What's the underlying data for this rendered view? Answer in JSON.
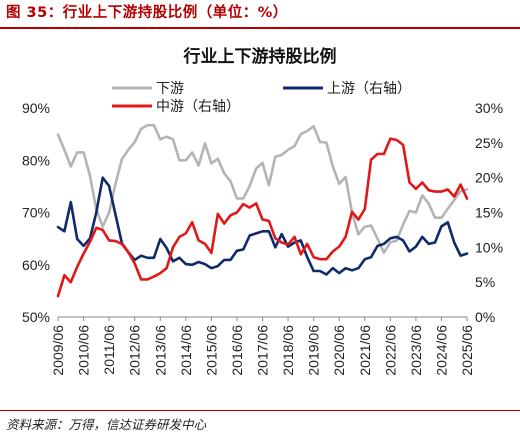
{
  "header": {
    "figure_title": "图 35：行业上下游持股比例（单位：%）"
  },
  "footer": {
    "source": "资料来源：万得，信达证券研发中心"
  },
  "colors": {
    "accent": "#b40000",
    "downstream": "#b4b4b4",
    "midstream": "#e01818",
    "upstream": "#0e2a6b"
  },
  "chart_data": {
    "type": "line",
    "title": "行业上下游持股比例",
    "x_categories": [
      "2009/06",
      "2010/06",
      "2011/06",
      "2012/06",
      "2013/06",
      "2014/06",
      "2015/06",
      "2016/06",
      "2017/06",
      "2018/06",
      "2019/06",
      "2020/06",
      "2021/06",
      "2022/06",
      "2023/06",
      "2024/06",
      "2025/06"
    ],
    "y_left": {
      "range": [
        50,
        90
      ],
      "ticks": [
        "50%",
        "60%",
        "70%",
        "80%",
        "90%"
      ]
    },
    "y_right": {
      "range": [
        0,
        30
      ],
      "ticks": [
        "0%",
        "5%",
        "10%",
        "15%",
        "20%",
        "25%",
        "30%"
      ]
    },
    "legend": [
      {
        "name": "下游",
        "color": "#b4b4b4"
      },
      {
        "name": "上游（右轴）",
        "color": "#0e2a6b"
      },
      {
        "name": "中游（右轴）",
        "color": "#e01818"
      }
    ],
    "legend_placement": "top-center",
    "grid": false,
    "series": [
      {
        "name": "下游",
        "axis": "left",
        "color": "#b4b4b4",
        "x": [
          2009.5,
          2009.75,
          2010.0,
          2010.25,
          2010.5,
          2010.75,
          2011.0,
          2011.25,
          2011.5,
          2011.75,
          2012.0,
          2012.25,
          2012.5,
          2012.75,
          2013.0,
          2013.25,
          2013.5,
          2013.75,
          2014.0,
          2014.25,
          2014.5,
          2014.75,
          2015.0,
          2015.25,
          2015.5,
          2015.75,
          2016.0,
          2016.25,
          2016.5,
          2016.75,
          2017.0,
          2017.25,
          2017.5,
          2017.75,
          2018.0,
          2018.25,
          2018.5,
          2018.75,
          2019.0,
          2019.25,
          2019.5,
          2019.75,
          2020.0,
          2020.25,
          2020.5,
          2020.75,
          2021.0,
          2021.25,
          2021.5,
          2021.75,
          2022.0,
          2022.25,
          2022.5,
          2022.75,
          2023.0,
          2023.25,
          2023.5,
          2023.75,
          2024.0,
          2024.25,
          2024.5,
          2024.75,
          2025.0,
          2025.25,
          2025.5
        ],
        "values": [
          84.9,
          82.0,
          78.8,
          81.5,
          81.5,
          77.0,
          70.6,
          67.3,
          70.0,
          75.5,
          80.2,
          82.0,
          83.5,
          86.0,
          86.7,
          86.7,
          84.0,
          84.5,
          84.0,
          80.0,
          80.0,
          81.5,
          79.0,
          83.2,
          79.4,
          80.3,
          77.5,
          76.0,
          72.7,
          72.7,
          75.1,
          78.4,
          79.5,
          75.2,
          80.7,
          81.0,
          82.0,
          82.7,
          85.0,
          85.6,
          86.5,
          83.5,
          83.4,
          78.8,
          75.5,
          76.8,
          70.0,
          65.8,
          67.3,
          67.5,
          65.0,
          62.3,
          64.3,
          64.6,
          67.7,
          70.3,
          70.0,
          73.3,
          71.7,
          69.0,
          69.0,
          70.7,
          72.4,
          74.1,
          74.4
        ]
      },
      {
        "name": "上游（右轴）",
        "axis": "right",
        "color": "#0e2a6b",
        "x": [
          2009.5,
          2009.75,
          2010.0,
          2010.25,
          2010.5,
          2010.75,
          2011.0,
          2011.25,
          2011.5,
          2011.75,
          2012.0,
          2012.25,
          2012.5,
          2012.75,
          2013.0,
          2013.25,
          2013.5,
          2013.75,
          2014.0,
          2014.25,
          2014.5,
          2014.75,
          2015.0,
          2015.25,
          2015.5,
          2015.75,
          2016.0,
          2016.25,
          2016.5,
          2016.75,
          2017.0,
          2017.25,
          2017.5,
          2017.75,
          2018.0,
          2018.25,
          2018.5,
          2018.75,
          2019.0,
          2019.25,
          2019.5,
          2019.75,
          2020.0,
          2020.25,
          2020.5,
          2020.75,
          2021.0,
          2021.25,
          2021.5,
          2021.75,
          2022.0,
          2022.25,
          2022.5,
          2022.75,
          2023.0,
          2023.25,
          2023.5,
          2023.75,
          2024.0,
          2024.25,
          2024.5,
          2024.75,
          2025.0,
          2025.25,
          2025.5
        ],
        "values": [
          12.9,
          12.3,
          16.5,
          11.2,
          10.2,
          11.3,
          15.0,
          20.0,
          18.8,
          14.7,
          10.6,
          9.3,
          8.2,
          8.8,
          8.5,
          8.5,
          11.2,
          9.9,
          8.0,
          8.5,
          7.6,
          7.5,
          7.9,
          7.6,
          7.0,
          7.3,
          8.2,
          8.2,
          9.5,
          9.7,
          11.7,
          12.0,
          12.3,
          12.3,
          10.0,
          11.9,
          10.1,
          10.7,
          11.0,
          8.6,
          6.6,
          6.6,
          6.1,
          7.0,
          6.3,
          7.0,
          6.7,
          7.0,
          8.3,
          8.6,
          10.2,
          10.5,
          11.3,
          11.5,
          11.0,
          9.4,
          10.1,
          11.5,
          10.5,
          10.7,
          13.0,
          13.6,
          10.7,
          8.8,
          9.1
        ]
      },
      {
        "name": "中游（右轴）",
        "axis": "right",
        "color": "#e01818",
        "x": [
          2009.5,
          2009.75,
          2010.0,
          2010.25,
          2010.5,
          2010.75,
          2011.0,
          2011.25,
          2011.5,
          2011.75,
          2012.0,
          2012.25,
          2012.5,
          2012.75,
          2013.0,
          2013.25,
          2013.5,
          2013.75,
          2014.0,
          2014.25,
          2014.5,
          2014.75,
          2015.0,
          2015.25,
          2015.5,
          2015.75,
          2016.0,
          2016.25,
          2016.5,
          2016.75,
          2017.0,
          2017.25,
          2017.5,
          2017.75,
          2018.0,
          2018.25,
          2018.5,
          2018.75,
          2019.0,
          2019.25,
          2019.5,
          2019.75,
          2020.0,
          2020.25,
          2020.5,
          2020.75,
          2021.0,
          2021.25,
          2021.5,
          2021.75,
          2022.0,
          2022.25,
          2022.5,
          2022.75,
          2023.0,
          2023.25,
          2023.5,
          2023.75,
          2024.0,
          2024.25,
          2024.5,
          2024.75,
          2025.0,
          2025.25,
          2025.5
        ],
        "values": [
          3.0,
          6.0,
          5.0,
          7.2,
          9.1,
          10.8,
          12.8,
          12.5,
          11.0,
          10.9,
          10.5,
          9.3,
          7.7,
          5.4,
          5.4,
          5.8,
          6.3,
          7.0,
          10.0,
          11.5,
          12.0,
          13.6,
          11.0,
          10.5,
          9.2,
          14.8,
          13.4,
          14.6,
          15.0,
          16.2,
          15.7,
          16.3,
          14.0,
          13.8,
          11.3,
          10.7,
          10.4,
          11.5,
          9.0,
          10.5,
          8.6,
          8.3,
          8.3,
          9.4,
          10.1,
          11.5,
          15.1,
          14.0,
          15.5,
          22.6,
          23.4,
          23.4,
          25.6,
          25.4,
          24.7,
          19.3,
          18.4,
          19.3,
          18.2,
          18.0,
          18.0,
          18.3,
          17.3,
          19.0,
          17.0
        ]
      }
    ]
  }
}
